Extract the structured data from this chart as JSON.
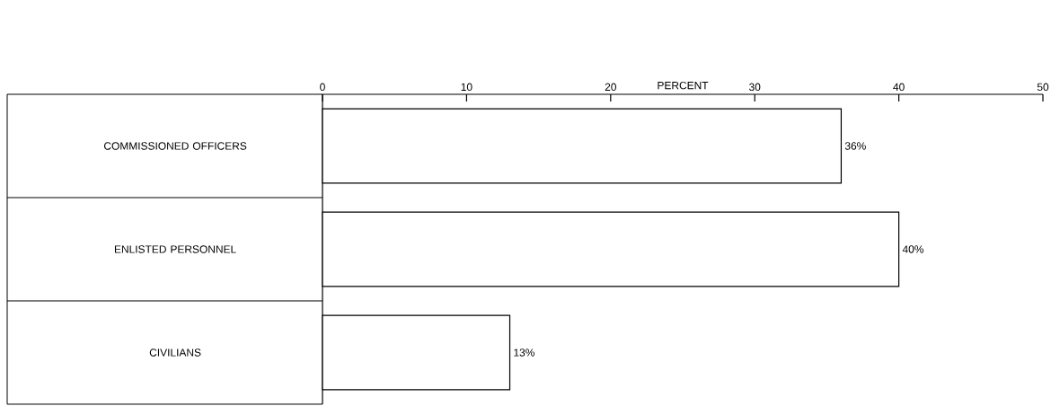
{
  "chart_data": {
    "type": "bar",
    "orientation": "horizontal",
    "xlabel": "PERCENT",
    "categories": [
      "COMMISSIONED OFFICERS",
      "ENLISTED PERSONNEL",
      "CIVILIANS"
    ],
    "values": [
      36,
      40,
      13
    ],
    "value_labels": [
      "36%",
      "40%",
      "13%"
    ],
    "color": "#000000",
    "xlim": [
      0,
      50
    ],
    "xticks": [
      0,
      10,
      20,
      30,
      40,
      50
    ]
  }
}
